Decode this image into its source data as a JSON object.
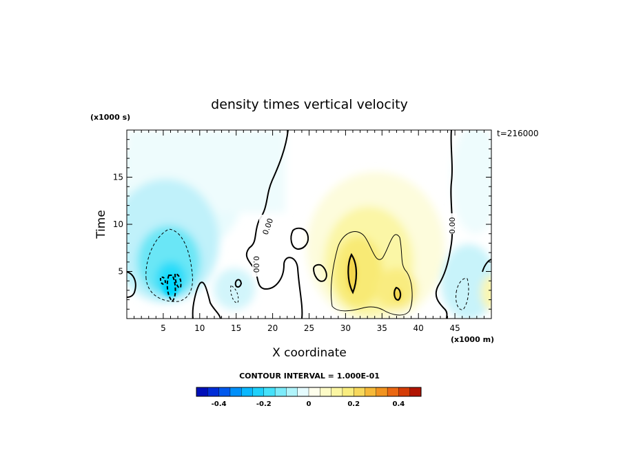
{
  "chart_data": {
    "type": "heatmap",
    "title": "density times vertical velocity",
    "xlabel": "X coordinate",
    "ylabel": "Time",
    "x_unit": "(x1000 m)",
    "y_unit": "(x1000 s)",
    "time_label": "t=216000",
    "xlim": [
      0,
      50
    ],
    "ylim": [
      0,
      20
    ],
    "xticks": [
      5,
      10,
      15,
      20,
      25,
      30,
      35,
      40,
      45
    ],
    "yticks": [
      5,
      10,
      15
    ],
    "contour_interval_text": "CONTOUR INTERVAL = 1.000E-01",
    "contour_labels": [
      "0.00",
      "0.00",
      "0.00"
    ],
    "colorbar": {
      "range": [
        -0.5,
        0.5
      ],
      "step": 0.05,
      "tick_values": [
        -0.4,
        -0.2,
        0,
        0.2,
        0.4
      ],
      "tick_labels": [
        "-0.4",
        "-0.2",
        "0",
        "0.2",
        "0.4"
      ]
    },
    "features": [
      {
        "name": "negative-core-left",
        "x": 6.5,
        "y": 4.0,
        "value": -0.3
      },
      {
        "name": "negative-region-left",
        "x": 6.0,
        "y": 6.0,
        "value": -0.15
      },
      {
        "name": "positive-core-center",
        "x": 31.0,
        "y": 5.0,
        "value": 0.2
      },
      {
        "name": "positive-secondary",
        "x": 37.0,
        "y": 2.5,
        "value": 0.2
      },
      {
        "name": "negative-right",
        "x": 46.0,
        "y": 3.0,
        "value": -0.1
      }
    ]
  },
  "colors": {
    "neg_strong": "#00d8ff",
    "neg_medium": "#6ae6f6",
    "neg_weak": "#c0f1fa",
    "neg_faint": "#e8fbfd",
    "pos_faint": "#fdfcdc",
    "pos_weak": "#fbf6a6",
    "pos_medium": "#f8ea74",
    "pos_strong": "#f3d54c"
  }
}
